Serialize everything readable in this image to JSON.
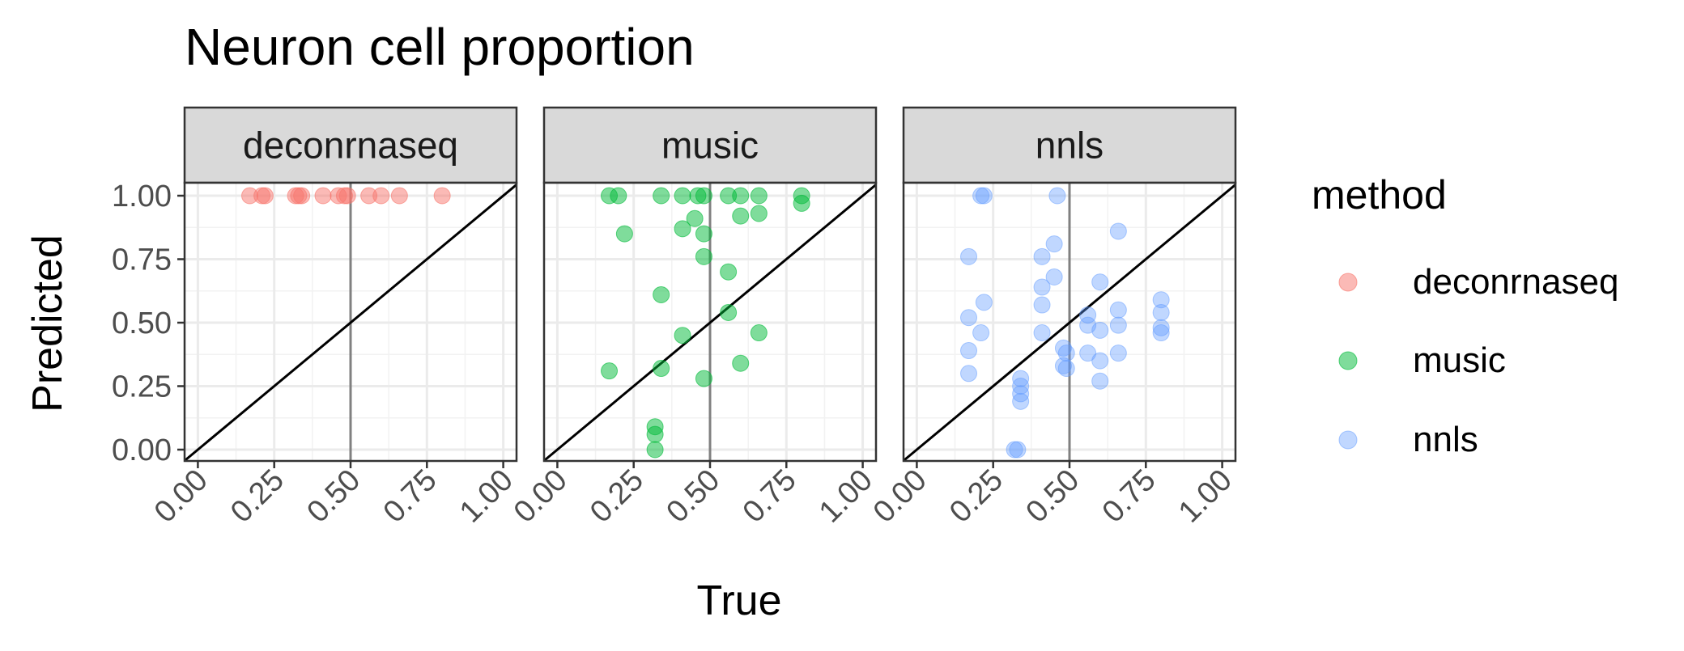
{
  "chart_data": {
    "type": "scatter",
    "title": "Neuron cell proportion",
    "xlabel": "True",
    "ylabel": "Predicted",
    "xlim": [
      0,
      1
    ],
    "ylim": [
      0,
      1
    ],
    "x_ticks": [
      "0.00",
      "0.25",
      "0.50",
      "0.75",
      "1.00"
    ],
    "y_ticks": [
      "0.00",
      "0.25",
      "0.50",
      "0.75",
      "1.00"
    ],
    "grid": true,
    "reference_lines": [
      "identity y = x",
      "vertical x = 0.5"
    ],
    "legend": {
      "title": "method",
      "placement": "right",
      "entries": [
        "deconrnaseq",
        "music",
        "nnls"
      ]
    },
    "colors": {
      "deconrnaseq": "#F8766D",
      "music": "#00BA38",
      "nnls": "#619CFF"
    },
    "panels": [
      {
        "label": "deconrnaseq",
        "points": [
          [
            0.17,
            1.0
          ],
          [
            0.21,
            1.0
          ],
          [
            0.22,
            1.0
          ],
          [
            0.32,
            1.0
          ],
          [
            0.33,
            1.0
          ],
          [
            0.34,
            1.0
          ],
          [
            0.41,
            1.0
          ],
          [
            0.46,
            1.0
          ],
          [
            0.48,
            1.0
          ],
          [
            0.49,
            1.0
          ],
          [
            0.56,
            1.0
          ],
          [
            0.6,
            1.0
          ],
          [
            0.66,
            1.0
          ],
          [
            0.8,
            1.0
          ]
        ]
      },
      {
        "label": "music",
        "points": [
          [
            0.17,
            1.0
          ],
          [
            0.2,
            1.0
          ],
          [
            0.34,
            1.0
          ],
          [
            0.41,
            1.0
          ],
          [
            0.46,
            1.0
          ],
          [
            0.48,
            1.0
          ],
          [
            0.56,
            1.0
          ],
          [
            0.6,
            1.0
          ],
          [
            0.66,
            1.0
          ],
          [
            0.8,
            1.0
          ],
          [
            0.8,
            0.97
          ],
          [
            0.22,
            0.85
          ],
          [
            0.41,
            0.87
          ],
          [
            0.45,
            0.91
          ],
          [
            0.48,
            0.85
          ],
          [
            0.6,
            0.92
          ],
          [
            0.66,
            0.93
          ],
          [
            0.48,
            0.76
          ],
          [
            0.56,
            0.7
          ],
          [
            0.34,
            0.61
          ],
          [
            0.56,
            0.54
          ],
          [
            0.41,
            0.45
          ],
          [
            0.66,
            0.46
          ],
          [
            0.17,
            0.31
          ],
          [
            0.34,
            0.32
          ],
          [
            0.48,
            0.28
          ],
          [
            0.6,
            0.34
          ],
          [
            0.32,
            0.09
          ],
          [
            0.32,
            0.06
          ],
          [
            0.32,
            0.0
          ]
        ]
      },
      {
        "label": "nnls",
        "points": [
          [
            0.21,
            1.0
          ],
          [
            0.22,
            1.0
          ],
          [
            0.46,
            1.0
          ],
          [
            0.66,
            0.86
          ],
          [
            0.45,
            0.81
          ],
          [
            0.17,
            0.76
          ],
          [
            0.41,
            0.76
          ],
          [
            0.41,
            0.64
          ],
          [
            0.45,
            0.68
          ],
          [
            0.6,
            0.66
          ],
          [
            0.22,
            0.58
          ],
          [
            0.41,
            0.57
          ],
          [
            0.17,
            0.52
          ],
          [
            0.21,
            0.46
          ],
          [
            0.56,
            0.53
          ],
          [
            0.56,
            0.49
          ],
          [
            0.6,
            0.47
          ],
          [
            0.66,
            0.55
          ],
          [
            0.66,
            0.49
          ],
          [
            0.8,
            0.59
          ],
          [
            0.8,
            0.54
          ],
          [
            0.8,
            0.48
          ],
          [
            0.8,
            0.46
          ],
          [
            0.41,
            0.46
          ],
          [
            0.17,
            0.39
          ],
          [
            0.17,
            0.3
          ],
          [
            0.48,
            0.4
          ],
          [
            0.49,
            0.38
          ],
          [
            0.48,
            0.33
          ],
          [
            0.49,
            0.32
          ],
          [
            0.56,
            0.38
          ],
          [
            0.6,
            0.35
          ],
          [
            0.6,
            0.27
          ],
          [
            0.66,
            0.38
          ],
          [
            0.34,
            0.28
          ],
          [
            0.34,
            0.25
          ],
          [
            0.34,
            0.22
          ],
          [
            0.34,
            0.19
          ],
          [
            0.32,
            0.0
          ],
          [
            0.33,
            0.0
          ]
        ]
      }
    ]
  }
}
